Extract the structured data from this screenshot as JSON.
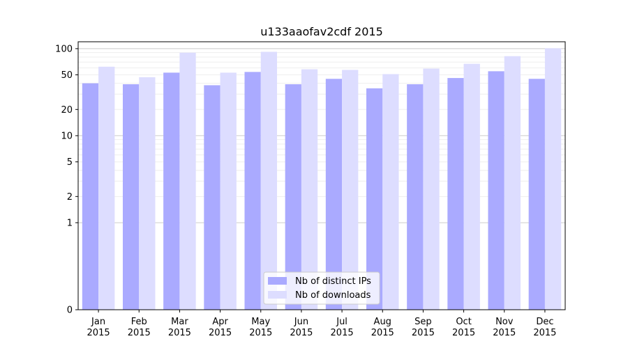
{
  "chart_data": {
    "type": "bar",
    "title": "u133aaofav2cdf 2015",
    "xlabel": "",
    "ylabel": "",
    "y_scale": "symlog",
    "ylim": [
      0,
      120
    ],
    "y_ticks": [
      {
        "value": 0,
        "label": "0"
      },
      {
        "value": 1,
        "label": "1"
      },
      {
        "value": 2,
        "label": "2"
      },
      {
        "value": 5,
        "label": "5"
      },
      {
        "value": 10,
        "label": "10"
      },
      {
        "value": 20,
        "label": "20"
      },
      {
        "value": 50,
        "label": "50"
      },
      {
        "value": 100,
        "label": "100"
      }
    ],
    "categories": [
      [
        "Jan",
        "2015"
      ],
      [
        "Feb",
        "2015"
      ],
      [
        "Mar",
        "2015"
      ],
      [
        "Apr",
        "2015"
      ],
      [
        "May",
        "2015"
      ],
      [
        "Jun",
        "2015"
      ],
      [
        "Jul",
        "2015"
      ],
      [
        "Aug",
        "2015"
      ],
      [
        "Sep",
        "2015"
      ],
      [
        "Oct",
        "2015"
      ],
      [
        "Nov",
        "2015"
      ],
      [
        "Dec",
        "2015"
      ]
    ],
    "series": [
      {
        "name": "Nb of distinct IPs",
        "color": "#aaaaff",
        "values": [
          40,
          39,
          53,
          38,
          54,
          39,
          45,
          35,
          39,
          46,
          55,
          45
        ]
      },
      {
        "name": "Nb of downloads",
        "color": "#ddddff",
        "values": [
          62,
          47,
          90,
          53,
          92,
          58,
          57,
          51,
          59,
          67,
          82,
          101
        ]
      }
    ],
    "legend": "bottom-center",
    "grid": "horizontal"
  }
}
